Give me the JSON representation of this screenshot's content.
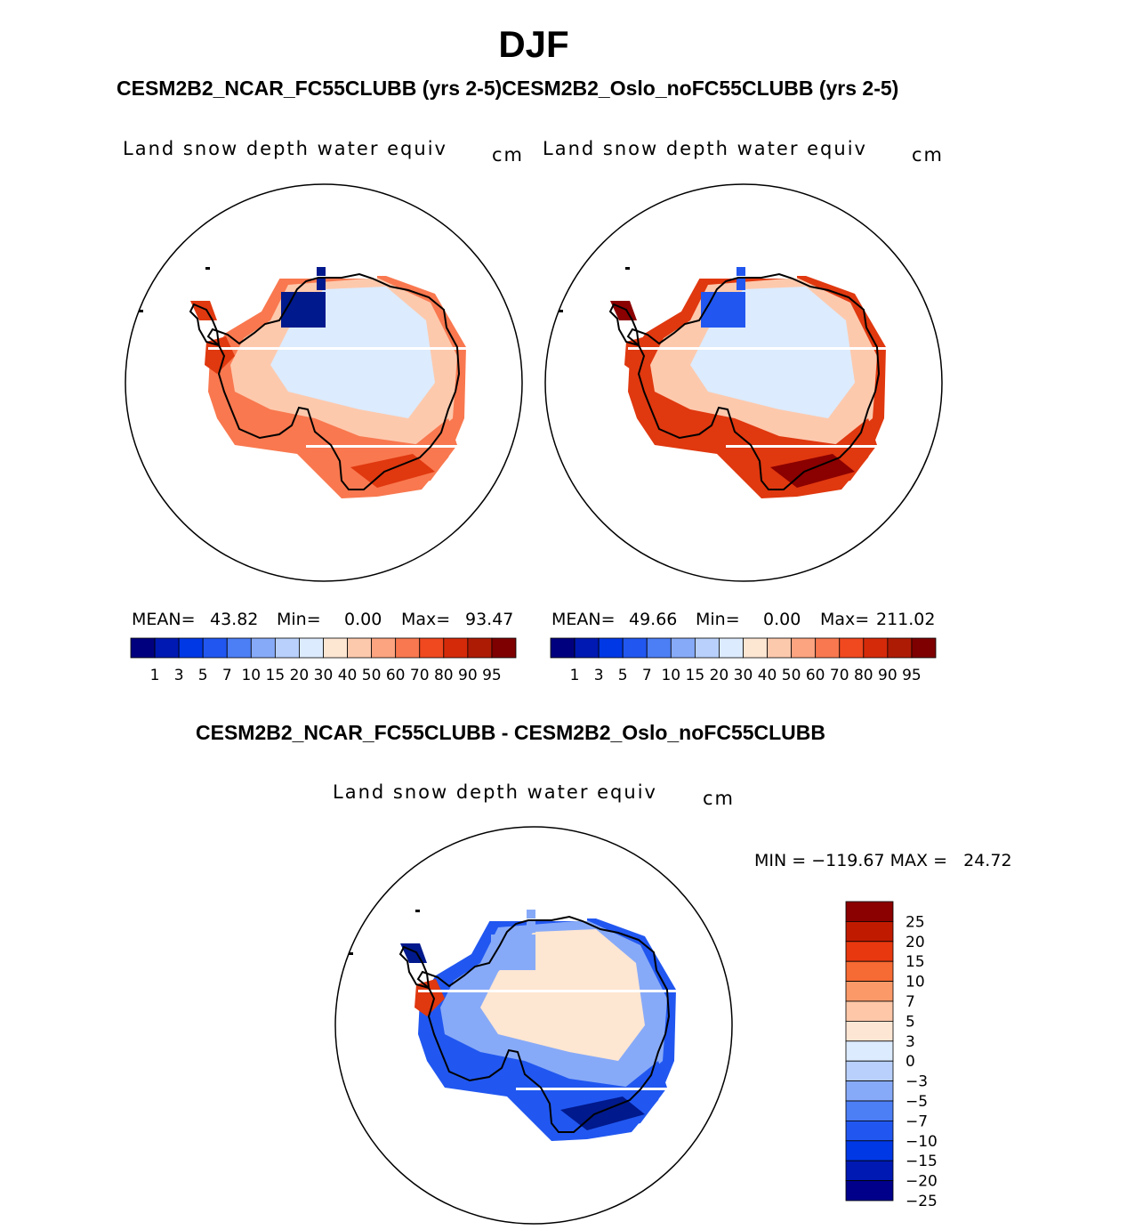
{
  "figure": {
    "season": "DJF",
    "subtitle": "CESM2B2_NCAR_FC55CLUBB (yrs 2-5)CESM2B2_Oslo_noFC55CLUBB (yrs 2-5)",
    "diff_title": "CESM2B2_NCAR_FC55CLUBB - CESM2B2_Oslo_noFC55CLUBB"
  },
  "panels": [
    {
      "variable": "Land snow depth water equiv",
      "units": "cm",
      "mean_label": "MEAN=",
      "mean": "43.82",
      "min_label": "Min=",
      "min": "0.00",
      "max_label": "Max=",
      "max": "93.47"
    },
    {
      "variable": "Land snow depth water equiv",
      "units": "cm",
      "mean_label": "MEAN=",
      "mean": "49.66",
      "min_label": "Min=",
      "min": "0.00",
      "max_label": "Max=",
      "max": "211.02"
    }
  ],
  "diff_panel": {
    "variable": "Land snow depth water equiv",
    "units": "cm",
    "minmax_text": "MIN = −119.67 MAX =   24.72"
  },
  "abs_colorbar": {
    "colors": [
      "#00007f",
      "#0019b3",
      "#0038e6",
      "#2157f0",
      "#4c7ef5",
      "#87aaf8",
      "#b8d0fb",
      "#dcebfd",
      "#fde6d2",
      "#fdc9ad",
      "#fca37f",
      "#f9784f",
      "#f0481f",
      "#d52a0a",
      "#ae1b05",
      "#7e0000"
    ],
    "ticks": [
      "1",
      "3",
      "5",
      "7",
      "10",
      "15",
      "20",
      "30",
      "40",
      "50",
      "60",
      "70",
      "80",
      "90",
      "95"
    ]
  },
  "diff_colorbar": {
    "colors_top_to_bottom": [
      "#8b0000",
      "#c01b00",
      "#e8380f",
      "#f66a33",
      "#fb9a68",
      "#fdc7a8",
      "#fde7d4",
      "#dcebfd",
      "#b8d0fb",
      "#87aaf8",
      "#4c7ef5",
      "#2157f0",
      "#0038e6",
      "#0019b3",
      "#00008b"
    ],
    "ticks_top_to_bottom": [
      "25",
      "20",
      "15",
      "10",
      "7",
      "5",
      "3",
      "0",
      "−3",
      "−5",
      "−7",
      "−10",
      "−15",
      "−20",
      "−25"
    ]
  },
  "map_colors": {
    "deep_blue": "#00198c",
    "mid_blue": "#2157f0",
    "light_blue": "#87aaf8",
    "pale_blue": "#dcebfd",
    "pale_peach": "#fde6d2",
    "peach": "#fdc9ad",
    "orange": "#f9784f",
    "red": "#e0380f",
    "dark_red": "#8b0000"
  }
}
